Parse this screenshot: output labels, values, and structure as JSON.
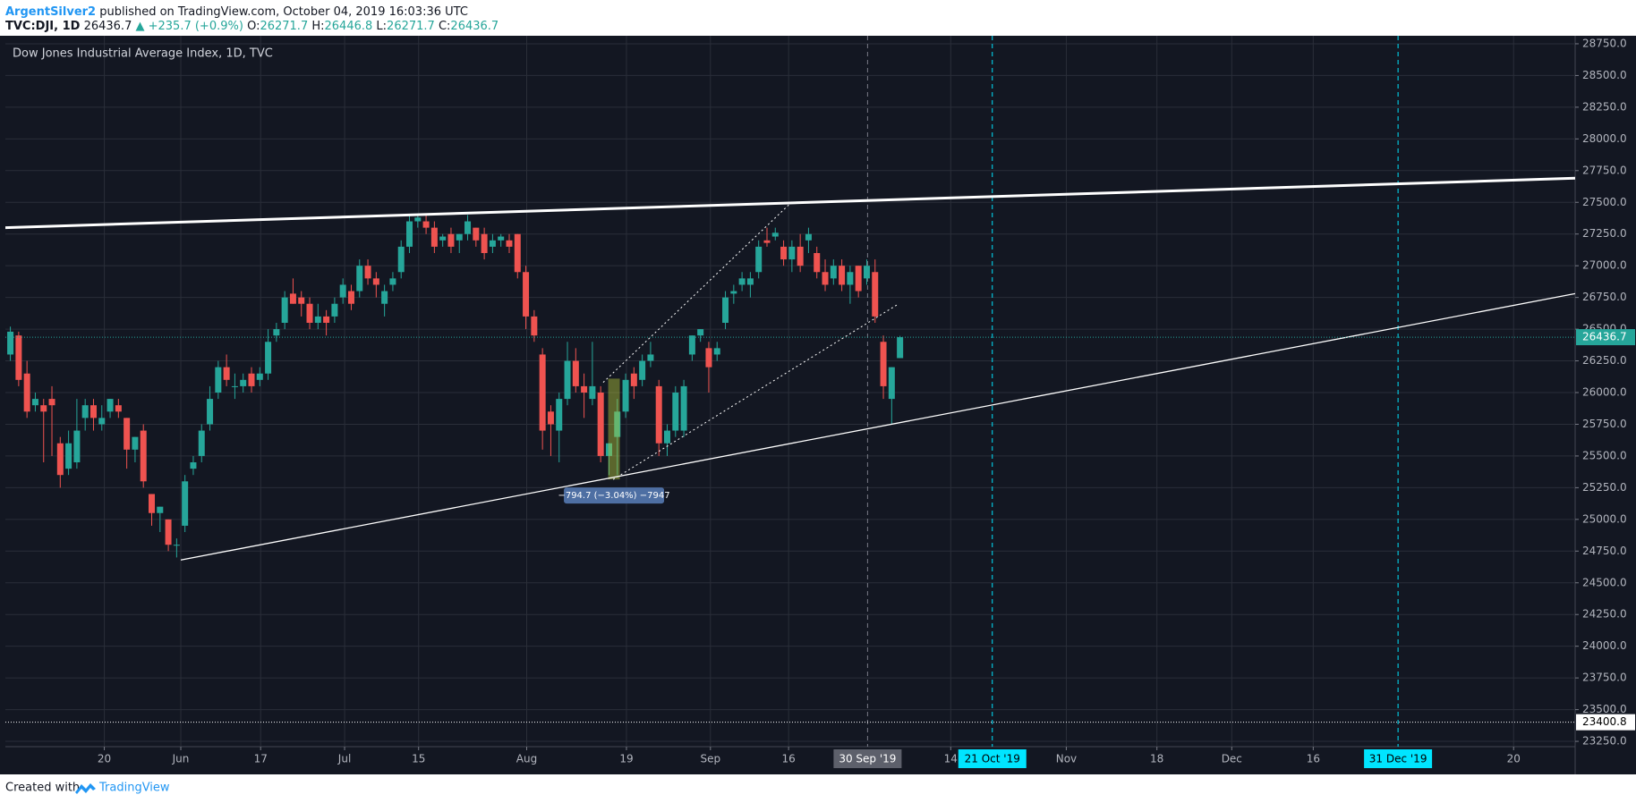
{
  "header": {
    "author": "ArgentSilver2",
    "published": " published on TradingView.com, October 04, 2019 16:03:36 UTC",
    "quote": [
      "TVC:DJI, 1D",
      "26436.7",
      "▲ +235.7 (+0.9%)",
      "O:",
      "26271.7",
      "H:",
      "26446.8",
      "L:",
      "26271.7",
      "C:",
      "26436.7"
    ]
  },
  "footer": {
    "created": "Created with",
    "brand": "TradingView"
  },
  "chart_data": {
    "type": "candlestick",
    "title": "Dow Jones Industrial Average Index, 1D, TVC",
    "up_color": "#26a69a",
    "down_color": "#ef5350",
    "grid": true,
    "xlim": [
      -0.6,
      188.2
    ],
    "ylim": [
      23208,
      28785
    ],
    "xticks": [
      {
        "value": 11.3,
        "label": "20"
      },
      {
        "value": 20.5,
        "label": "Jun"
      },
      {
        "value": 30.1,
        "label": "17"
      },
      {
        "value": 40.2,
        "label": "Jul"
      },
      {
        "value": 49.1,
        "label": "15"
      },
      {
        "value": 62.1,
        "label": "Aug"
      },
      {
        "value": 74.1,
        "label": "19"
      },
      {
        "value": 84.2,
        "label": "Sep"
      },
      {
        "value": 93.6,
        "label": "16"
      },
      {
        "value": 113.1,
        "label": "14"
      },
      {
        "value": 127.0,
        "label": "Nov"
      },
      {
        "value": 137.9,
        "label": "18"
      },
      {
        "value": 146.9,
        "label": "Dec"
      },
      {
        "value": 156.7,
        "label": "16"
      },
      {
        "value": 180.8,
        "label": "20"
      }
    ],
    "yticks": [
      {
        "value": 23250,
        "label": "23250.0"
      },
      {
        "value": 23500,
        "label": "23500.0"
      },
      {
        "value": 23750,
        "label": "23750.0"
      },
      {
        "value": 24000,
        "label": "24000.0"
      },
      {
        "value": 24250,
        "label": "24250.0"
      },
      {
        "value": 24500,
        "label": "24500.0"
      },
      {
        "value": 24750,
        "label": "24750.0"
      },
      {
        "value": 25000,
        "label": "25000.0"
      },
      {
        "value": 25250,
        "label": "25250.0"
      },
      {
        "value": 25500,
        "label": "25500.0"
      },
      {
        "value": 25750,
        "label": "25750.0"
      },
      {
        "value": 26000,
        "label": "26000.0"
      },
      {
        "value": 26250,
        "label": "26250.0"
      },
      {
        "value": 26500,
        "label": "26500.0"
      },
      {
        "value": 26750,
        "label": "26750.0"
      },
      {
        "value": 27000,
        "label": "27000.0"
      },
      {
        "value": 27250,
        "label": "27250.0"
      },
      {
        "value": 27500,
        "label": "27500.0"
      },
      {
        "value": 27750,
        "label": "27750.0"
      },
      {
        "value": 28000,
        "label": "28000.0"
      },
      {
        "value": 28250,
        "label": "28250.0"
      },
      {
        "value": 28500,
        "label": "28500.0"
      },
      {
        "value": 28750,
        "label": "28750.0"
      }
    ],
    "open": [
      26300,
      26450,
      26150,
      25900,
      25900,
      25950,
      25600,
      25400,
      25450,
      25800,
      25900,
      25750,
      25850,
      25900,
      25800,
      25550,
      25700,
      25200,
      25050,
      25000,
      24800,
      24950,
      25400,
      25500,
      25750,
      26000,
      26200,
      26050,
      26050,
      26150,
      26100,
      26150,
      26450,
      26550,
      26780,
      26750,
      26700,
      26550,
      26600,
      26600,
      26750,
      26800,
      26800,
      27000,
      26900,
      26700,
      26850,
      26950,
      27150,
      27350,
      27350,
      27300,
      27200,
      27250,
      27200,
      27250,
      27300,
      27250,
      27150,
      27200,
      27200,
      27250,
      26950,
      26600,
      26300,
      25850,
      25700,
      25950,
      26250,
      26050,
      25950,
      26000,
      25500,
      25650,
      25850,
      26150,
      26100,
      26250,
      26050,
      25600,
      25700,
      25700,
      26300,
      26450,
      26350,
      26300,
      26550,
      26780,
      26850,
      26850,
      26950,
      27200,
      27230,
      27150,
      27050,
      27150,
      27200,
      27100,
      26950,
      26900,
      27000,
      26850,
      27000,
      26900,
      26950,
      26400,
      25950,
      26271.7
    ],
    "high": [
      26520,
      26480,
      26250,
      26000,
      25950,
      26050,
      25650,
      25700,
      25950,
      25950,
      25950,
      25900,
      25950,
      25950,
      25800,
      25650,
      25750,
      25200,
      25100,
      25000,
      24850,
      25350,
      25500,
      25750,
      26050,
      26250,
      26300,
      26150,
      26150,
      26200,
      26200,
      26500,
      26550,
      26800,
      26900,
      26800,
      26750,
      26700,
      26650,
      26750,
      26900,
      26850,
      27050,
      27050,
      26950,
      26850,
      26950,
      27200,
      27400,
      27400,
      27400,
      27350,
      27250,
      27300,
      27250,
      27400,
      27300,
      27300,
      27250,
      27250,
      27250,
      27250,
      27000,
      26650,
      26350,
      25900,
      26000,
      26400,
      26350,
      26150,
      26400,
      26050,
      25600,
      25950,
      26150,
      26200,
      26300,
      26400,
      26100,
      25750,
      26050,
      26100,
      26450,
      26500,
      26400,
      26400,
      26800,
      26850,
      26950,
      26950,
      27200,
      27300,
      27300,
      27200,
      27200,
      27250,
      27300,
      27150,
      27050,
      27050,
      27050,
      27000,
      27000,
      27050,
      27050,
      26450,
      26200,
      26446.8
    ],
    "low": [
      26250,
      26050,
      25800,
      25850,
      25450,
      25500,
      25250,
      25350,
      25400,
      25700,
      25700,
      25700,
      25800,
      25800,
      25400,
      25450,
      25250,
      24950,
      24900,
      24750,
      24700,
      24900,
      25350,
      25450,
      25700,
      25950,
      26050,
      25950,
      26000,
      26000,
      26050,
      26100,
      26400,
      26500,
      26700,
      26600,
      26500,
      26500,
      26450,
      26550,
      26700,
      26650,
      26750,
      26850,
      26750,
      26600,
      26800,
      26900,
      27100,
      27300,
      27250,
      27100,
      27150,
      27100,
      27100,
      27200,
      27150,
      27050,
      27100,
      27150,
      27100,
      26900,
      26500,
      26400,
      25550,
      25500,
      25450,
      25900,
      26000,
      25800,
      25900,
      25450,
      25350,
      25350,
      25800,
      25950,
      26050,
      26200,
      25500,
      25500,
      25650,
      25650,
      26250,
      26400,
      26000,
      26250,
      26500,
      26700,
      26800,
      26750,
      26900,
      27150,
      27200,
      27000,
      26950,
      26950,
      27100,
      26900,
      26800,
      26850,
      26800,
      26700,
      26750,
      26850,
      26550,
      25950,
      25750,
      26271.7
    ],
    "close": [
      26480,
      26100,
      25850,
      25950,
      25850,
      25900,
      25350,
      25600,
      25700,
      25900,
      25800,
      25800,
      25950,
      25850,
      25550,
      25650,
      25300,
      25050,
      25100,
      24800,
      24800,
      25300,
      25450,
      25700,
      25950,
      26200,
      26100,
      26050,
      26100,
      26050,
      26150,
      26400,
      26500,
      26750,
      26700,
      26700,
      26550,
      26600,
      26550,
      26700,
      26850,
      26700,
      27000,
      26900,
      26850,
      26800,
      26900,
      27150,
      27350,
      27380,
      27300,
      27150,
      27230,
      27150,
      27250,
      27350,
      27200,
      27100,
      27200,
      27230,
      27150,
      26950,
      26600,
      26450,
      25700,
      25750,
      25950,
      26250,
      26050,
      26000,
      26050,
      25500,
      25600,
      25850,
      26100,
      26050,
      26250,
      26300,
      25600,
      25700,
      26000,
      26050,
      26450,
      26500,
      26200,
      26350,
      26750,
      26800,
      26900,
      26900,
      27150,
      27180,
      27260,
      27050,
      27150,
      27000,
      27250,
      26950,
      26850,
      27000,
      26850,
      26950,
      26800,
      27000,
      26600,
      26050,
      26200,
      26436.7
    ],
    "lines": [
      {
        "x": [
          -0.6,
          188.2
        ],
        "y": [
          27300,
          27690
        ],
        "width": 3,
        "dash": "none"
      },
      {
        "x": [
          20.5,
          188.2
        ],
        "y": [
          24680,
          26780
        ],
        "width": 1.3,
        "dash": "none"
      },
      {
        "x": [
          71.3,
          94.1
        ],
        "y": [
          26080,
          27510
        ],
        "width": 1,
        "dash": "2 3"
      },
      {
        "x": [
          72.5,
          106.6
        ],
        "y": [
          25315,
          26690
        ],
        "width": 1,
        "dash": "2 3"
      }
    ],
    "price_lines": [
      {
        "value": 26436.7,
        "color": "#26a69a",
        "text_color": "#ffffff"
      },
      {
        "value": 23400.8,
        "color": "#ffffff",
        "text_color": "#000000"
      }
    ],
    "markers": [
      {
        "x": 103.1,
        "label": "30 Sep '19",
        "color": "#787b86",
        "box": "#5d606b",
        "text_color": "#ffffff"
      },
      {
        "x": 118.1,
        "label": "21 Oct '19",
        "color": "#00e5ff",
        "box": "#00e5ff",
        "text_color": "#000000"
      },
      {
        "x": 166.9,
        "label": "31 Dec '19",
        "color": "#00e5ff",
        "box": "#00e5ff",
        "text_color": "#000000"
      }
    ],
    "measure": {
      "x": [
        71.9,
        73.3
      ],
      "y": [
        25315,
        26110
      ],
      "label": "−794.7 (−3.04%) −7947"
    }
  }
}
